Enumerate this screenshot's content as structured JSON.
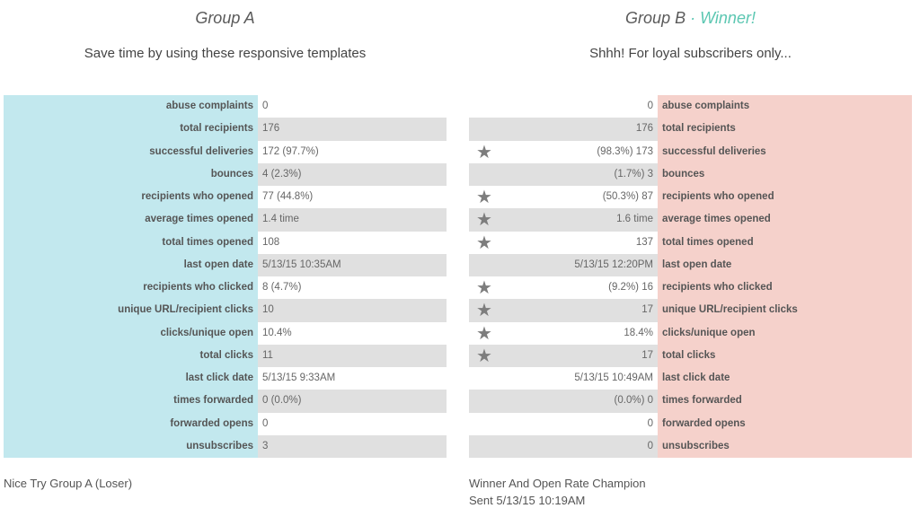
{
  "group_a": {
    "title": "Group A",
    "subtitle": "Save time by using these responsive templates",
    "footer": "Nice Try Group A (Loser)"
  },
  "group_b": {
    "title": "Group B",
    "title_separator": " · ",
    "winner_label": "Winner!",
    "subtitle": "Shhh! For loyal subscribers only...",
    "footer_line1": "Winner And Open Rate Champion",
    "footer_line2": "Sent 5/13/15 10:19AM"
  },
  "star_icon": "★",
  "colors": {
    "group_a_label_bg": "#c2e8ee",
    "group_b_label_bg": "#f5d1cb",
    "winner_text": "#5cc7b2",
    "alt_row_bg": "#e0e0e0",
    "star": "#7d7d7d"
  },
  "stats": [
    {
      "label": "abuse complaints",
      "a": "0",
      "b": "0",
      "b_star": false
    },
    {
      "label": "total recipients",
      "a": "176",
      "b": "176",
      "b_star": false
    },
    {
      "label": "successful deliveries",
      "a": "172 (97.7%)",
      "b": "(98.3%) 173",
      "b_star": true
    },
    {
      "label": "bounces",
      "a": "4 (2.3%)",
      "b": "(1.7%) 3",
      "b_star": false
    },
    {
      "label": "recipients who opened",
      "a": "77 (44.8%)",
      "b": "(50.3%) 87",
      "b_star": true
    },
    {
      "label": "average times opened",
      "a": "1.4 time",
      "b": "1.6 time",
      "b_star": true
    },
    {
      "label": "total times opened",
      "a": "108",
      "b": "137",
      "b_star": true
    },
    {
      "label": "last open date",
      "a": "5/13/15 10:35AM",
      "b": "5/13/15 12:20PM",
      "b_star": false
    },
    {
      "label": "recipients who clicked",
      "a": "8 (4.7%)",
      "b": "(9.2%) 16",
      "b_star": true
    },
    {
      "label": "unique URL/recipient clicks",
      "a": "10",
      "b": "17",
      "b_star": true
    },
    {
      "label": "clicks/unique open",
      "a": "10.4%",
      "b": "18.4%",
      "b_star": true
    },
    {
      "label": "total clicks",
      "a": "11",
      "b": "17",
      "b_star": true
    },
    {
      "label": "last click date",
      "a": "5/13/15 9:33AM",
      "b": "5/13/15 10:49AM",
      "b_star": false
    },
    {
      "label": "times forwarded",
      "a": "0 (0.0%)",
      "b": "(0.0%) 0",
      "b_star": false
    },
    {
      "label": "forwarded opens",
      "a": "0",
      "b": "0",
      "b_star": false
    },
    {
      "label": "unsubscribes",
      "a": "3",
      "b": "0",
      "b_star": false
    }
  ]
}
